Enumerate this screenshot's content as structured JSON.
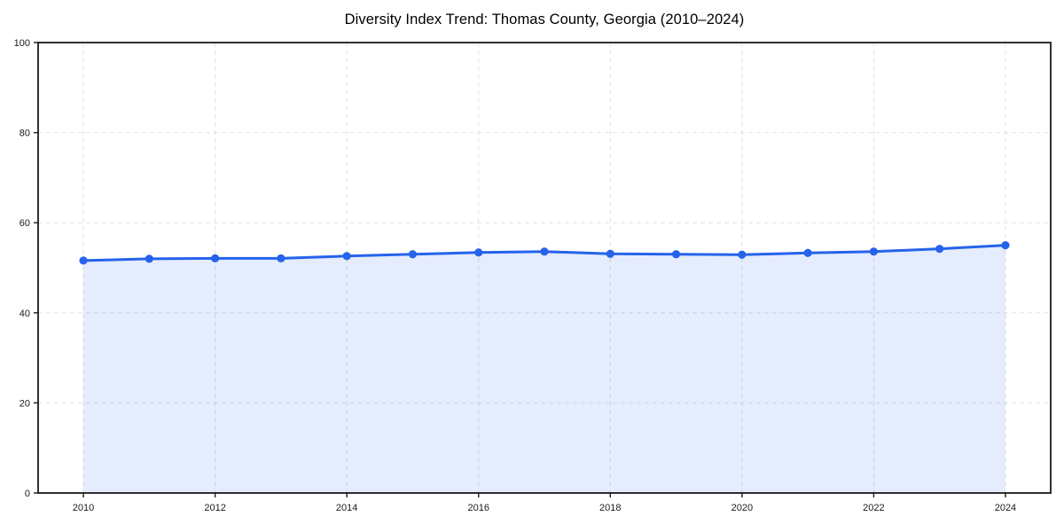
{
  "chart_data": {
    "type": "area",
    "title": "Diversity Index Trend: Thomas County, Georgia (2010–2024)",
    "series_name": "Diversity Index",
    "x": [
      2010,
      2011,
      2012,
      2013,
      2014,
      2015,
      2016,
      2017,
      2018,
      2019,
      2020,
      2021,
      2022,
      2023,
      2024
    ],
    "values": [
      51.6,
      52.0,
      52.1,
      52.1,
      52.6,
      53.0,
      53.4,
      53.6,
      53.1,
      53.0,
      52.9,
      53.3,
      53.6,
      54.2,
      55.0
    ],
    "xlabel": "",
    "ylabel": "",
    "xlim": [
      2010,
      2024
    ],
    "ylim": [
      0,
      100
    ],
    "x_ticks": [
      2010,
      2012,
      2014,
      2016,
      2018,
      2020,
      2022,
      2024
    ],
    "y_ticks": [
      0,
      20,
      40,
      60,
      80,
      100
    ],
    "grid": "dashed, both axes, at major ticks",
    "legend": "none",
    "colors": {
      "line": "#2563eb",
      "marker": "#2563eb",
      "fill": "rgba(37, 99, 235, 0.12)",
      "grid": "#d9d9d9",
      "axis": "#1a1a1a",
      "tick_text": "#1a1a1a",
      "title_text": "#000000",
      "background": "#ffffff"
    }
  }
}
